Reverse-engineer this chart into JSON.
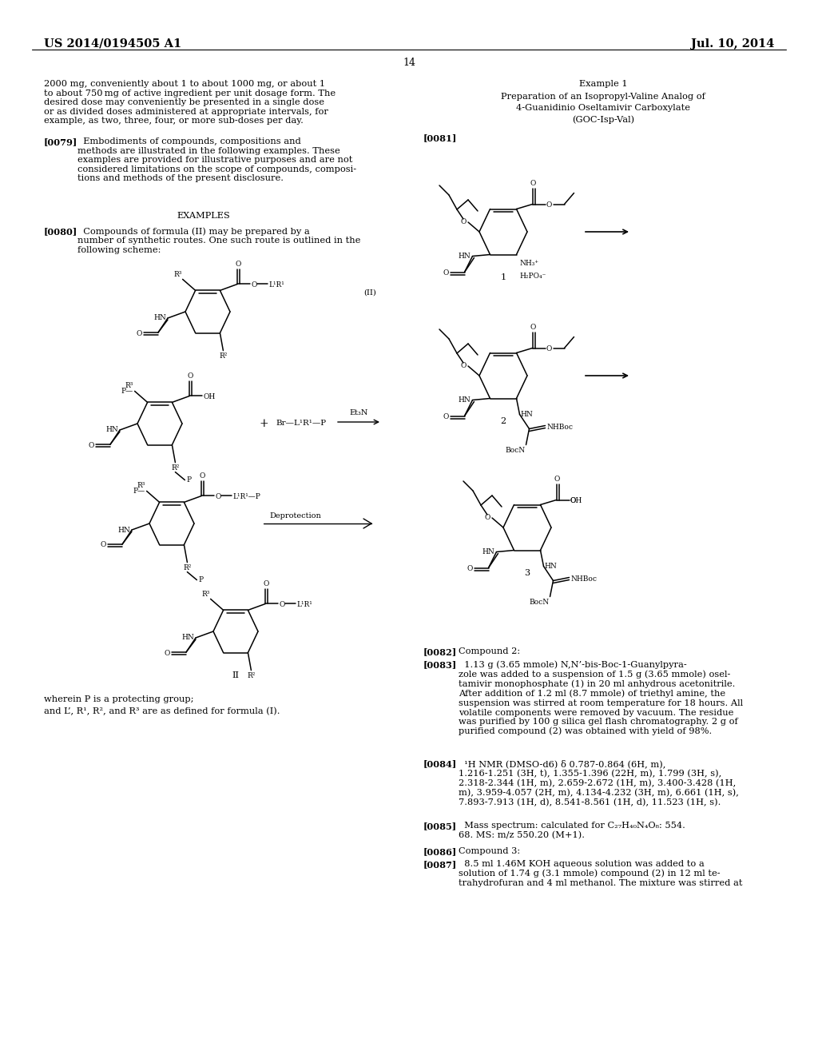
{
  "bg": "#ffffff",
  "header_left": "US 2014/0194505 A1",
  "header_right": "Jul. 10, 2014",
  "page_num": "14",
  "body_fs": 8.2,
  "header_fs": 10.5,
  "small_fs": 7.0,
  "chem_fs": 6.5,
  "label_fs": 7.5
}
